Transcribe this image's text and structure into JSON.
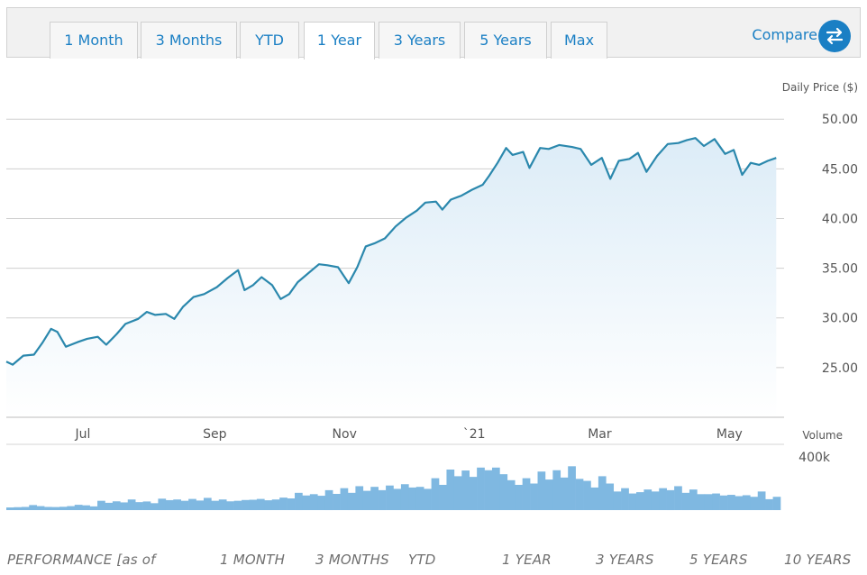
{
  "range_tabs": [
    {
      "label": "1 Month",
      "active": false
    },
    {
      "label": "3 Months",
      "active": false
    },
    {
      "label": "YTD",
      "active": false
    },
    {
      "label": "1 Year",
      "active": true
    },
    {
      "label": "3 Years",
      "active": false
    },
    {
      "label": "5 Years",
      "active": false
    },
    {
      "label": "Max",
      "active": false
    }
  ],
  "compare": {
    "label": "Compare",
    "icon": "swap-arrows-icon"
  },
  "colors": {
    "line": "#2b88ad",
    "area_top": "#dcecf7",
    "volume": "#7fb8e1",
    "accent": "#1a7fc4"
  },
  "chart_data": {
    "type": "line",
    "ylabel": "Daily Price ($)",
    "ytick_labels": [
      "50.00",
      "45.00",
      "40.00",
      "35.00",
      "30.00",
      "25.00"
    ],
    "yticks": [
      50,
      45,
      40,
      35,
      30,
      25
    ],
    "ylim": [
      20,
      51.2
    ],
    "xtick_labels": [
      "Jul",
      "Sep",
      "Nov",
      "`21",
      "Mar",
      "May"
    ],
    "xtick_dates": [
      "2020-07-01",
      "2020-09-01",
      "2020-11-01",
      "2021-01-01",
      "2021-03-01",
      "2021-05-01"
    ],
    "xlim": [
      "2020-05-26",
      "2021-05-25"
    ],
    "grid": true,
    "series": [
      {
        "points": [
          [
            "2020-05-26",
            25.6
          ],
          [
            "2020-05-29",
            25.3
          ],
          [
            "2020-06-03",
            26.2
          ],
          [
            "2020-06-08",
            26.3
          ],
          [
            "2020-06-12",
            27.5
          ],
          [
            "2020-06-16",
            28.9
          ],
          [
            "2020-06-19",
            28.6
          ],
          [
            "2020-06-23",
            27.1
          ],
          [
            "2020-06-29",
            27.6
          ],
          [
            "2020-07-03",
            27.9
          ],
          [
            "2020-07-08",
            28.1
          ],
          [
            "2020-07-12",
            27.3
          ],
          [
            "2020-07-17",
            28.4
          ],
          [
            "2020-07-21",
            29.4
          ],
          [
            "2020-07-27",
            29.9
          ],
          [
            "2020-07-31",
            30.6
          ],
          [
            "2020-08-04",
            30.3
          ],
          [
            "2020-08-09",
            30.4
          ],
          [
            "2020-08-13",
            29.9
          ],
          [
            "2020-08-17",
            31.1
          ],
          [
            "2020-08-22",
            32.1
          ],
          [
            "2020-08-27",
            32.4
          ],
          [
            "2020-09-02",
            33.1
          ],
          [
            "2020-09-07",
            34.0
          ],
          [
            "2020-09-12",
            34.8
          ],
          [
            "2020-09-15",
            32.8
          ],
          [
            "2020-09-19",
            33.3
          ],
          [
            "2020-09-23",
            34.1
          ],
          [
            "2020-09-28",
            33.3
          ],
          [
            "2020-10-02",
            31.9
          ],
          [
            "2020-10-06",
            32.4
          ],
          [
            "2020-10-10",
            33.6
          ],
          [
            "2020-10-15",
            34.5
          ],
          [
            "2020-10-20",
            35.4
          ],
          [
            "2020-10-24",
            35.3
          ],
          [
            "2020-10-29",
            35.1
          ],
          [
            "2020-11-03",
            33.5
          ],
          [
            "2020-11-07",
            35.1
          ],
          [
            "2020-11-11",
            37.2
          ],
          [
            "2020-11-15",
            37.5
          ],
          [
            "2020-11-20",
            38.0
          ],
          [
            "2020-11-25",
            39.2
          ],
          [
            "2020-11-30",
            40.1
          ],
          [
            "2020-12-05",
            40.8
          ],
          [
            "2020-12-09",
            41.6
          ],
          [
            "2020-12-14",
            41.7
          ],
          [
            "2020-12-17",
            40.9
          ],
          [
            "2020-12-21",
            41.9
          ],
          [
            "2020-12-26",
            42.3
          ],
          [
            "2020-12-31",
            42.9
          ],
          [
            "2021-01-05",
            43.4
          ],
          [
            "2021-01-08",
            44.3
          ],
          [
            "2021-01-12",
            45.6
          ],
          [
            "2021-01-16",
            47.1
          ],
          [
            "2021-01-19",
            46.4
          ],
          [
            "2021-01-24",
            46.7
          ],
          [
            "2021-01-27",
            45.1
          ],
          [
            "2021-02-01",
            47.1
          ],
          [
            "2021-02-05",
            47.0
          ],
          [
            "2021-02-10",
            47.4
          ],
          [
            "2021-02-16",
            47.2
          ],
          [
            "2021-02-20",
            47.0
          ],
          [
            "2021-02-25",
            45.4
          ],
          [
            "2021-03-02",
            46.1
          ],
          [
            "2021-03-06",
            44.0
          ],
          [
            "2021-03-10",
            45.8
          ],
          [
            "2021-03-15",
            46.0
          ],
          [
            "2021-03-19",
            46.6
          ],
          [
            "2021-03-23",
            44.7
          ],
          [
            "2021-03-28",
            46.3
          ],
          [
            "2021-04-02",
            47.5
          ],
          [
            "2021-04-07",
            47.6
          ],
          [
            "2021-04-11",
            47.9
          ],
          [
            "2021-04-15",
            48.1
          ],
          [
            "2021-04-19",
            47.3
          ],
          [
            "2021-04-24",
            48.0
          ],
          [
            "2021-04-29",
            46.5
          ],
          [
            "2021-05-03",
            46.9
          ],
          [
            "2021-05-07",
            44.4
          ],
          [
            "2021-05-11",
            45.6
          ],
          [
            "2021-05-15",
            45.4
          ],
          [
            "2021-05-19",
            45.8
          ],
          [
            "2021-05-23",
            46.1
          ]
        ]
      }
    ],
    "volume": {
      "label": "Volume",
      "tick_label": "400k",
      "ylim": [
        0,
        400000
      ],
      "values": [
        20000,
        22000,
        24000,
        38000,
        30000,
        24000,
        23000,
        25000,
        30000,
        40000,
        36000,
        28000,
        70000,
        55000,
        66000,
        58000,
        80000,
        60000,
        65000,
        52000,
        86000,
        75000,
        80000,
        70000,
        84000,
        72000,
        92000,
        70000,
        80000,
        66000,
        70000,
        76000,
        78000,
        84000,
        74000,
        80000,
        94000,
        88000,
        130000,
        110000,
        120000,
        108000,
        150000,
        122000,
        165000,
        130000,
        180000,
        145000,
        175000,
        150000,
        185000,
        160000,
        195000,
        170000,
        175000,
        160000,
        240000,
        190000,
        305000,
        255000,
        298000,
        250000,
        320000,
        300000,
        320000,
        270000,
        225000,
        190000,
        240000,
        200000,
        290000,
        230000,
        300000,
        245000,
        330000,
        235000,
        220000,
        170000,
        255000,
        200000,
        140000,
        165000,
        125000,
        135000,
        155000,
        140000,
        165000,
        150000,
        180000,
        130000,
        155000,
        120000,
        120000,
        125000,
        110000,
        115000,
        105000,
        112000,
        100000,
        140000,
        82000,
        100000
      ]
    }
  },
  "performance": {
    "label": "PERFORMANCE [as of",
    "columns": [
      "1 MONTH",
      "3 MONTHS",
      "YTD",
      "1 YEAR",
      "3 YEARS",
      "5 YEARS",
      "10 YEARS"
    ]
  }
}
